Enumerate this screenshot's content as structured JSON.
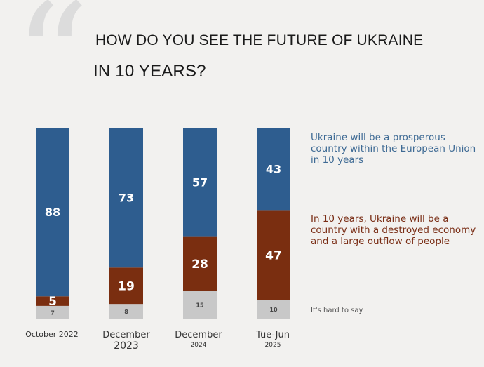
{
  "title_line1": "HOW DO YOU SEE THE FUTURE OF UKRAINE",
  "title_line2": "IN 10 YEARS?",
  "chart_data": {
    "type": "bar",
    "stacked": true,
    "categories": [
      {
        "line1": "October 2022",
        "line2": ""
      },
      {
        "line1": "December",
        "line2": "2023"
      },
      {
        "line1": "December",
        "line2": "2024"
      },
      {
        "line1": "Tue-Jun",
        "line2": "2025"
      }
    ],
    "series": [
      {
        "name": "It's hard to say",
        "values": [
          7,
          8,
          15,
          10
        ],
        "color": "#c8c8c8"
      },
      {
        "name": "In 10 years, Ukraine will be a country with a destroyed economy and a large outflow of people",
        "values": [
          5,
          19,
          28,
          47
        ],
        "color": "#7a2e10"
      },
      {
        "name": "Ukraine will be a prosperous country within the European Union in 10 years",
        "values": [
          88,
          73,
          57,
          43
        ],
        "color": "#2e5d8f"
      }
    ],
    "ylim": [
      0,
      100
    ],
    "grid": false,
    "legend_position": "right",
    "data_labels": true
  }
}
